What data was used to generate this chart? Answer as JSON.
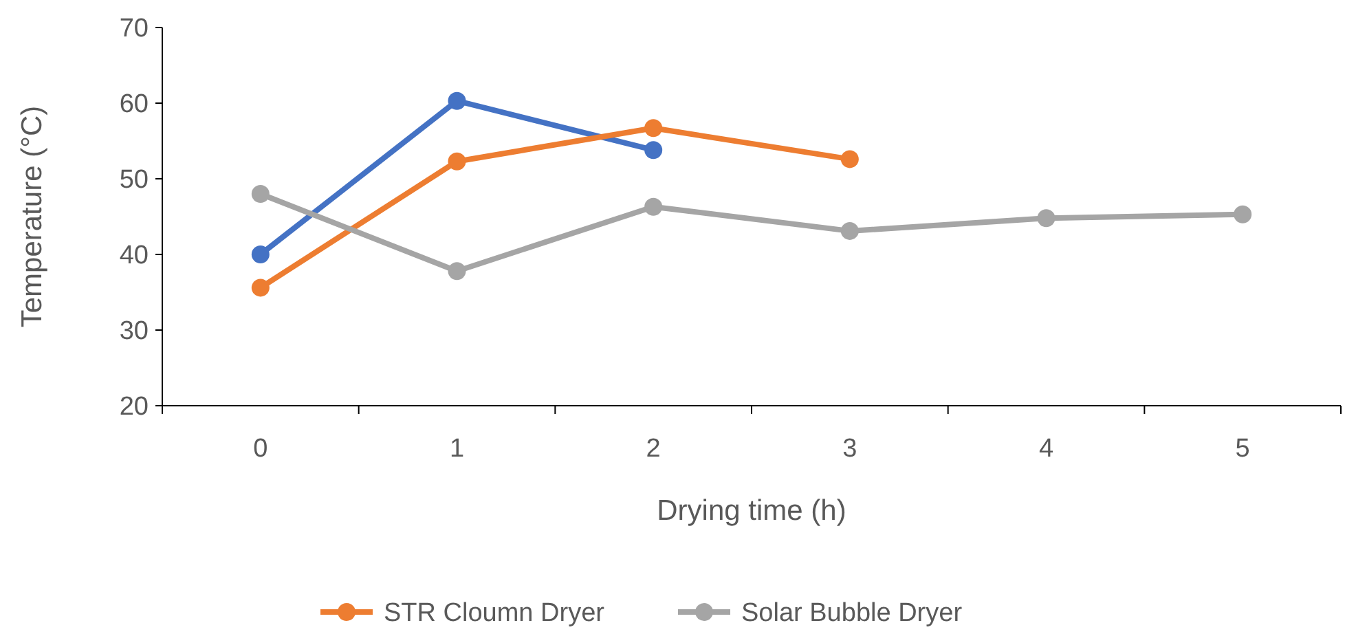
{
  "chart_data": {
    "type": "line",
    "xlabel": "Drying time (h)",
    "ylabel": "Temperature (°C)",
    "categories": [
      "0",
      "1",
      "2",
      "3",
      "4",
      "5"
    ],
    "ylim": [
      20,
      70
    ],
    "yticks": [
      20,
      30,
      40,
      50,
      60,
      70
    ],
    "grid": false,
    "legend": "bottom",
    "marker": "circle",
    "line_style": "solid",
    "series": [
      {
        "color": "#4472c4",
        "values": [
          40,
          60.3,
          53.8,
          null,
          null,
          null
        ]
      },
      {
        "name": "STR Cloumn Dryer",
        "color": "#ed7d31",
        "values": [
          35.6,
          52.3,
          56.7,
          52.6,
          null,
          null
        ]
      },
      {
        "name": "Solar Bubble Dryer",
        "color": "#a5a5a5",
        "values": [
          48,
          37.8,
          46.3,
          43.1,
          44.8,
          45.3
        ]
      }
    ]
  }
}
